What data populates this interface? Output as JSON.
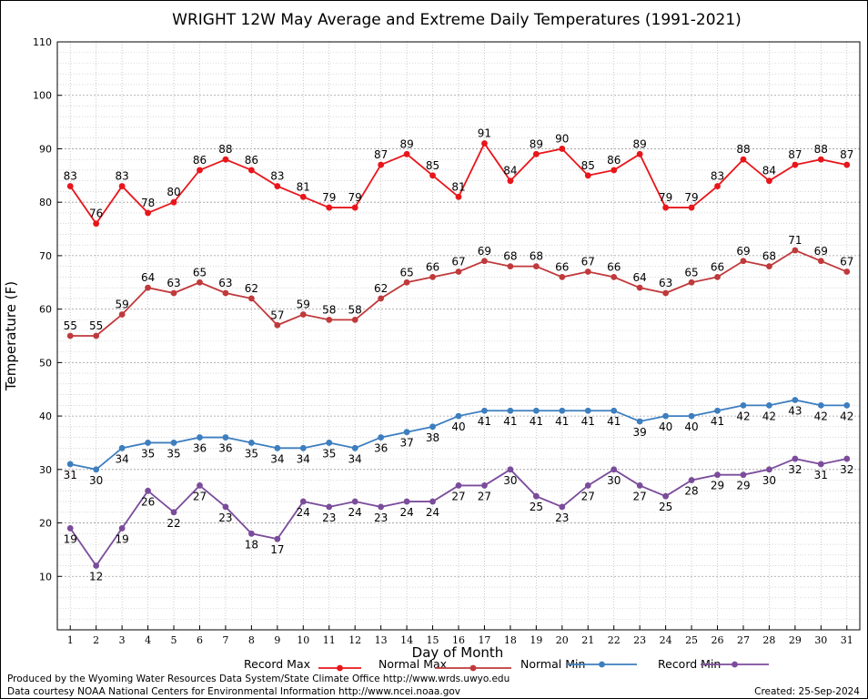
{
  "chart_data": {
    "type": "line",
    "title": "WRIGHT 12W May Average and Extreme Daily Temperatures (1991-2021)",
    "xlabel": "Day of Month",
    "ylabel": "Temperature (F)",
    "x": [
      1,
      2,
      3,
      4,
      5,
      6,
      7,
      8,
      9,
      10,
      11,
      12,
      13,
      14,
      15,
      16,
      17,
      18,
      19,
      20,
      21,
      22,
      23,
      24,
      25,
      26,
      27,
      28,
      29,
      30,
      31
    ],
    "xlim": [
      0.5,
      31.5
    ],
    "ylim": [
      0,
      110
    ],
    "yticks": [
      10,
      20,
      30,
      40,
      50,
      60,
      70,
      80,
      90,
      100,
      110
    ],
    "grid": true,
    "legend_position": "bottom",
    "series": [
      {
        "name": "Record Max",
        "color": "#e8161b",
        "label_position": "above",
        "values": [
          83,
          76,
          83,
          78,
          80,
          86,
          88,
          86,
          83,
          81,
          79,
          79,
          87,
          89,
          85,
          81,
          91,
          84,
          89,
          90,
          85,
          86,
          89,
          79,
          79,
          83,
          88,
          84,
          87,
          88,
          87
        ]
      },
      {
        "name": "Normal Max",
        "color": "#c0393b",
        "label_position": "above",
        "values": [
          55,
          55,
          59,
          64,
          63,
          65,
          63,
          62,
          57,
          59,
          58,
          58,
          62,
          65,
          66,
          67,
          69,
          68,
          68,
          66,
          67,
          66,
          64,
          63,
          65,
          66,
          69,
          68,
          71,
          69,
          67
        ]
      },
      {
        "name": "Normal Min",
        "color": "#3d7ebf",
        "label_position": "below",
        "values": [
          31,
          30,
          34,
          35,
          35,
          36,
          36,
          35,
          34,
          34,
          35,
          34,
          36,
          37,
          38,
          40,
          41,
          41,
          41,
          41,
          41,
          41,
          39,
          40,
          40,
          41,
          42,
          42,
          43,
          42,
          42
        ]
      },
      {
        "name": "Record Min",
        "color": "#7b4c9b",
        "label_position": "below",
        "values": [
          19,
          12,
          19,
          26,
          22,
          27,
          23,
          18,
          17,
          24,
          23,
          24,
          23,
          24,
          24,
          27,
          27,
          30,
          25,
          23,
          27,
          30,
          27,
          25,
          28,
          29,
          29,
          30,
          32,
          31,
          32
        ]
      }
    ]
  },
  "footer": {
    "produced_by": "Produced by the Wyoming Water Resources Data System/State Climate Office http://www.wrds.uwyo.edu",
    "data_courtesy": "Data courtesy NOAA National Centers for Environmental Information http://www.ncei.noaa.gov",
    "created": "Created:  25-Sep-2024"
  }
}
